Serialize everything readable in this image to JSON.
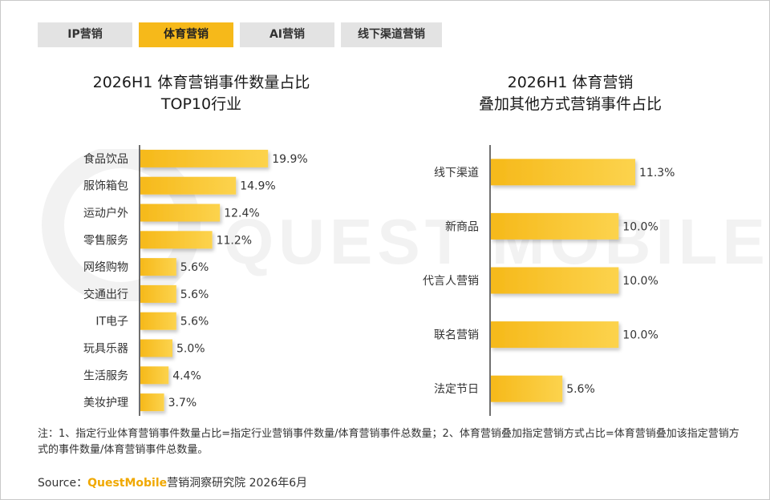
{
  "tabs": [
    {
      "label": "IP营销",
      "active": false
    },
    {
      "label": "体育营销",
      "active": true
    },
    {
      "label": "AI营销",
      "active": false
    },
    {
      "label": "线下渠道营销",
      "active": false
    }
  ],
  "colors": {
    "bar": "#f6b91a",
    "bar_light": "#fcd34d",
    "axis": "#222222",
    "brand": "#f0a800",
    "tab_active": "#f6b91a",
    "tab_inactive": "#e3e3e3"
  },
  "watermark": {
    "text": "QUEST MOBILE"
  },
  "chart_data": [
    {
      "type": "bar",
      "orientation": "horizontal",
      "title_lines": [
        "2026H1 体育营销事件数量占比",
        "TOP10行业"
      ],
      "categories": [
        "食品饮品",
        "服饰箱包",
        "运动户外",
        "零售服务",
        "网络购物",
        "交通出行",
        "IT电子",
        "玩具乐器",
        "生活服务",
        "美妆护理"
      ],
      "values": [
        19.9,
        14.9,
        12.4,
        11.2,
        5.6,
        5.6,
        5.6,
        5.0,
        4.4,
        3.7
      ],
      "unit": "%",
      "xlim": [
        0,
        20
      ],
      "grid": false,
      "legend": "none"
    },
    {
      "type": "bar",
      "orientation": "horizontal",
      "title_lines": [
        "2026H1 体育营销",
        "叠加其他方式营销事件占比"
      ],
      "categories": [
        "线下渠道",
        "新商品",
        "代言人营销",
        "联名营销",
        "法定节日"
      ],
      "values": [
        11.3,
        10.0,
        10.0,
        10.0,
        5.6
      ],
      "unit": "%",
      "xlim": [
        0,
        11.3
      ],
      "grid": false,
      "legend": "none"
    }
  ],
  "footer": {
    "note": "注：1、指定行业体育营销事件数量占比=指定行业营销事件数量/体育营销事件总数量；2、体育营销叠加指定营销方式占比=体育营销叠加该指定营销方式的事件数量/体育营销事件总数量。",
    "source_prefix": "Source：",
    "source_brand": "QuestMobile",
    "source_suffix": "营销洞察研究院 2026年6月"
  }
}
